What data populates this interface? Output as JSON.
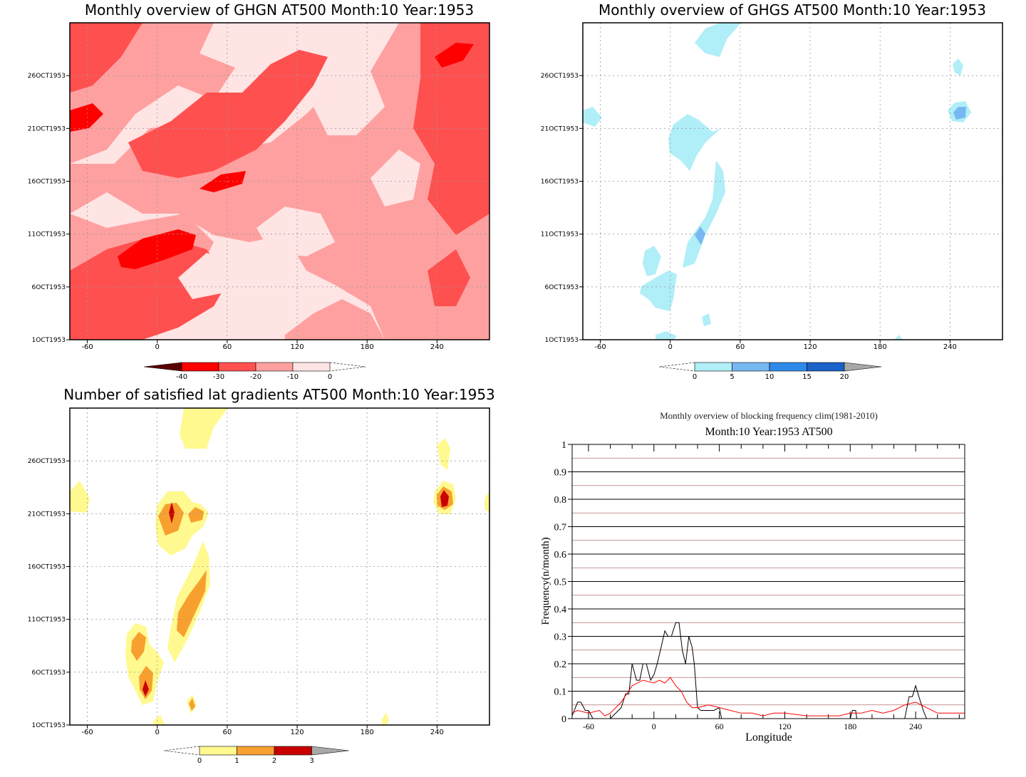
{
  "panels": {
    "ghgn": {
      "title": "Monthly overview of GHGN AT500 Month:10 Year:1953",
      "y_ticks": [
        "26OCT1953",
        "21OCT1953",
        "16OCT1953",
        "11OCT1953",
        "6OCT1953",
        "1OCT1953"
      ],
      "x_ticks": [
        "-60",
        "0",
        "60",
        "120",
        "180",
        "240"
      ],
      "colorbar": {
        "labels": [
          "-40",
          "-30",
          "-20",
          "-10",
          "0"
        ],
        "colors": [
          "#5a0000",
          "#ff0000",
          "#ff5050",
          "#ffa0a0",
          "#ffe4e4"
        ]
      }
    },
    "ghgs": {
      "title": "Monthly overview of GHGS AT500 Month:10 Year:1953",
      "y_ticks": [
        "26OCT1953",
        "21OCT1953",
        "16OCT1953",
        "11OCT1953",
        "6OCT1953",
        "1OCT1953"
      ],
      "x_ticks": [
        "-60",
        "0",
        "60",
        "120",
        "180",
        "240"
      ],
      "colorbar": {
        "labels": [
          "0",
          "5",
          "10",
          "15",
          "20"
        ],
        "colors": [
          "#b0eef8",
          "#78b8f2",
          "#2e8ae8",
          "#1a62c8",
          "#a8a8a8"
        ]
      }
    },
    "grad": {
      "title": "Number of satisfied lat gradients AT500 Month:10 Year:1953",
      "y_ticks": [
        "26OCT1953",
        "21OCT1953",
        "16OCT1953",
        "11OCT1953",
        "6OCT1953",
        "1OCT1953"
      ],
      "x_ticks": [
        "-60",
        "0",
        "60",
        "120",
        "180",
        "240"
      ],
      "colorbar": {
        "labels": [
          "0",
          "1",
          "2",
          "3"
        ],
        "colors": [
          "#fff98f",
          "#f7a030",
          "#c80000",
          "#a8a8a8"
        ]
      }
    },
    "freq": {
      "title": "Monthly overview of blocking frequency clim(1981-2010)",
      "subtitle": "Month:10 Year:1953  AT500",
      "xlabel": "Longitude",
      "ylabel": "Frequency(n/month)",
      "y_ticks": [
        "0",
        "0.1",
        "0.2",
        "0.3",
        "0.4",
        "0.5",
        "0.6",
        "0.7",
        "0.8",
        "0.9",
        "1"
      ],
      "x_ticks": [
        "-60",
        "0",
        "60",
        "120",
        "180",
        "240"
      ]
    }
  },
  "chart_data": [
    {
      "type": "heatmap",
      "title": "Monthly overview of GHGN AT500 Month:10 Year:1953",
      "x_ticks": [
        -60,
        0,
        60,
        120,
        180,
        240
      ],
      "y_ticks": [
        "26OCT1953",
        "21OCT1953",
        "16OCT1953",
        "11OCT1953",
        "6OCT1953",
        "1OCT1953"
      ],
      "levels": [
        -40,
        -30,
        -20,
        -10,
        0
      ]
    },
    {
      "type": "heatmap",
      "title": "Monthly overview of GHGS AT500 Month:10 Year:1953",
      "x_ticks": [
        -60,
        0,
        60,
        120,
        180,
        240
      ],
      "y_ticks": [
        "26OCT1953",
        "21OCT1953",
        "16OCT1953",
        "11OCT1953",
        "6OCT1953",
        "1OCT1953"
      ],
      "levels": [
        0,
        5,
        10,
        15,
        20
      ]
    },
    {
      "type": "heatmap",
      "title": "Number of satisfied lat gradients AT500 Month:10 Year:1953",
      "x_ticks": [
        -60,
        0,
        60,
        120,
        180,
        240
      ],
      "y_ticks": [
        "26OCT1953",
        "21OCT1953",
        "16OCT1953",
        "11OCT1953",
        "6OCT1953",
        "1OCT1953"
      ],
      "levels": [
        0,
        1,
        2,
        3
      ]
    },
    {
      "type": "line",
      "title": "Monthly overview of blocking frequency clim(1981-2010)",
      "subtitle": "Month:10 Year:1953  AT500",
      "xlabel": "Longitude",
      "ylabel": "Frequency(n/month)",
      "xlim": [
        -75,
        285
      ],
      "ylim": [
        0,
        1
      ],
      "grid": true,
      "series": [
        {
          "color": "#000000",
          "x": [
            -75,
            -70,
            -67,
            -63,
            -60,
            -56,
            -50,
            -40,
            -30,
            -26,
            -23,
            -20,
            -16,
            -13,
            -10,
            -7,
            -3,
            0,
            3,
            6,
            10,
            13,
            16,
            20,
            23,
            26,
            29,
            32,
            35,
            37,
            40,
            43,
            50,
            55,
            60,
            62,
            65,
            70,
            75,
            180,
            182,
            185,
            186,
            188,
            190,
            230,
            234,
            237,
            240,
            243,
            247,
            250,
            255,
            285
          ],
          "y": [
            0.01,
            0.06,
            0.06,
            0.03,
            0.03,
            0,
            0,
            0,
            0.04,
            0.09,
            0.09,
            0.2,
            0.14,
            0.14,
            0.2,
            0.2,
            0.14,
            0.16,
            0.2,
            0.25,
            0.32,
            0.3,
            0.3,
            0.35,
            0.35,
            0.25,
            0.2,
            0.3,
            0.26,
            0.2,
            0.04,
            0.03,
            0.03,
            0.03,
            0.04,
            0,
            0,
            0,
            0,
            0,
            0.03,
            0.03,
            0,
            0,
            0,
            0,
            0.08,
            0.08,
            0.12,
            0.08,
            0.03,
            0,
            0,
            0
          ]
        },
        {
          "color": "#ff0000",
          "x": [
            -75,
            -70,
            -60,
            -50,
            -45,
            -40,
            -30,
            -20,
            -10,
            0,
            5,
            10,
            15,
            20,
            25,
            30,
            35,
            40,
            50,
            60,
            70,
            80,
            90,
            100,
            110,
            120,
            140,
            160,
            170,
            180,
            190,
            200,
            210,
            220,
            230,
            240,
            250,
            260,
            270,
            285
          ],
          "y": [
            0.02,
            0.03,
            0.02,
            0.03,
            0.01,
            0.02,
            0.06,
            0.12,
            0.14,
            0.13,
            0.14,
            0.13,
            0.15,
            0.12,
            0.1,
            0.06,
            0.04,
            0.04,
            0.05,
            0.04,
            0.03,
            0.02,
            0.02,
            0.01,
            0.02,
            0.02,
            0.01,
            0.01,
            0.01,
            0.02,
            0.02,
            0.03,
            0.02,
            0.03,
            0.05,
            0.06,
            0.04,
            0.02,
            0.02,
            0.02
          ]
        }
      ]
    }
  ]
}
